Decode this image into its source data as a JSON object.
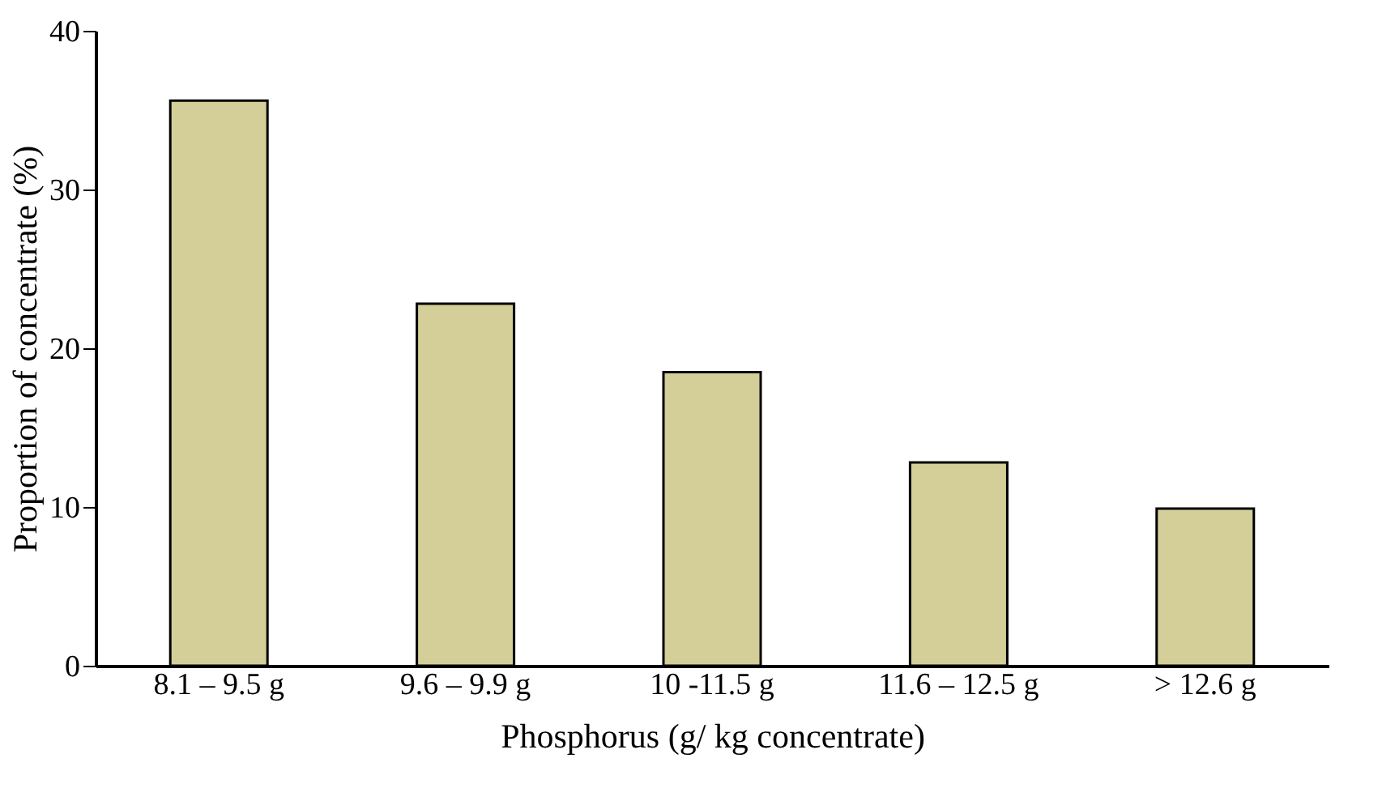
{
  "chart_data": {
    "type": "bar",
    "xlabel": "Phosphorus (g/ kg concentrate)",
    "ylabel": "Proportion of concentrate (%)",
    "categories": [
      "8.1 – 9.5 g",
      "9.6 – 9.9 g",
      "10 -11.5 g",
      "11.6 – 12.5 g",
      "> 12.6 g"
    ],
    "values": [
      35.6,
      22.8,
      18.5,
      12.8,
      9.9
    ],
    "color": "#d4cf98",
    "ylim": [
      0,
      40
    ],
    "yticks": [
      0,
      10,
      20,
      30,
      40
    ],
    "grid": false
  }
}
